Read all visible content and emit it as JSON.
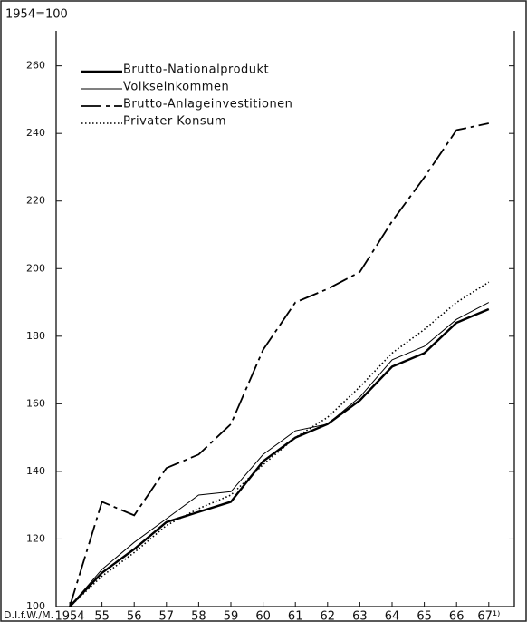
{
  "chart_data": {
    "type": "line",
    "subtitle": "1954=100",
    "source": "D.I.f.W./M.",
    "categories": [
      "1954",
      "55",
      "56",
      "57",
      "58",
      "59",
      "60",
      "61",
      "62",
      "63",
      "64",
      "65",
      "66",
      "67¹⁾"
    ],
    "ylim": [
      100,
      265
    ],
    "yticks": [
      100,
      120,
      140,
      160,
      180,
      200,
      220,
      240,
      260
    ],
    "legend": "top-left",
    "series": [
      {
        "name": "Brutto-Nationalprodukt",
        "color": "#000000",
        "style": "solid-thick",
        "values": [
          100,
          110,
          117,
          125,
          128,
          131,
          143,
          150,
          154,
          161,
          171,
          175,
          184,
          188
        ]
      },
      {
        "name": "Volkseinkommen",
        "color": "#000000",
        "style": "solid-thin",
        "values": [
          100,
          111,
          119,
          126,
          133,
          134,
          145,
          152,
          154,
          162,
          173,
          177,
          185,
          190
        ]
      },
      {
        "name": "Brutto-Anlageinvestitionen",
        "color": "#000000",
        "style": "dash-dot",
        "values": [
          100,
          131,
          127,
          141,
          145,
          154,
          176,
          190,
          194,
          199,
          214,
          227,
          241,
          243
        ]
      },
      {
        "name": "Privater Konsum",
        "color": "#000000",
        "style": "dotted",
        "values": [
          100,
          109,
          116,
          124,
          129,
          133,
          142,
          150,
          156,
          165,
          175,
          182,
          190,
          196
        ]
      }
    ]
  }
}
